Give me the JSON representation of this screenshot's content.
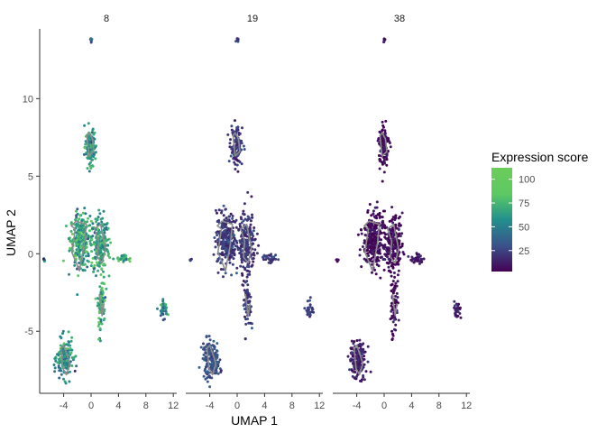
{
  "chart_data": {
    "type": "scatter",
    "facets": [
      "8",
      "19",
      "38"
    ],
    "xlabel": "UMAP 1",
    "ylabel": "UMAP 2",
    "xlim": [
      -7.5,
      12.5
    ],
    "ylim": [
      -9,
      14.5
    ],
    "x_ticks": [
      -4,
      0,
      4,
      8,
      12
    ],
    "x_tick_labels": [
      "-4",
      "0",
      "4",
      "8",
      "12"
    ],
    "y_ticks": [
      -5,
      0,
      5,
      10
    ],
    "y_tick_labels": [
      "-5",
      "0",
      "5",
      "10"
    ],
    "grid": false,
    "legend": {
      "title": "Expression score",
      "position": "right",
      "min": 3,
      "max": 112,
      "ticks": [
        25,
        50,
        75,
        100
      ],
      "tick_labels": [
        "25",
        "50",
        "75",
        "100"
      ],
      "palette": [
        "#440154",
        "#3b528b",
        "#21908c",
        "#5dc963",
        "#6ccc5a"
      ]
    },
    "clusters": [
      {
        "name": "top-dot",
        "cx": 0.0,
        "cy": 13.8,
        "rx": 0.15,
        "ry": 0.15,
        "n": 8,
        "score": [
          40,
          22,
          8
        ]
      },
      {
        "name": "upper-cluster",
        "cx": -0.1,
        "cy": 6.9,
        "rx": 0.75,
        "ry": 1.1,
        "n": 120,
        "score": [
          62,
          20,
          6
        ]
      },
      {
        "name": "left-main",
        "cx": -1.6,
        "cy": 0.9,
        "rx": 1.3,
        "ry": 1.6,
        "n": 260,
        "score": [
          68,
          22,
          6
        ]
      },
      {
        "name": "right-main",
        "cx": 1.3,
        "cy": 0.6,
        "rx": 1.2,
        "ry": 1.7,
        "n": 220,
        "score": [
          64,
          20,
          6
        ]
      },
      {
        "name": "lower-stem",
        "cx": 1.5,
        "cy": -3.2,
        "rx": 0.5,
        "ry": 1.4,
        "n": 70,
        "score": [
          70,
          22,
          8
        ]
      },
      {
        "name": "right-streak",
        "cx": 4.8,
        "cy": -0.3,
        "rx": 1.0,
        "ry": 0.25,
        "n": 30,
        "score": [
          72,
          24,
          10
        ]
      },
      {
        "name": "left-dot",
        "cx": -6.8,
        "cy": -0.4,
        "rx": 0.15,
        "ry": 0.12,
        "n": 5,
        "score": [
          50,
          20,
          6
        ]
      },
      {
        "name": "far-right",
        "cx": 10.6,
        "cy": -3.6,
        "rx": 0.45,
        "ry": 0.55,
        "n": 30,
        "score": [
          58,
          26,
          14
        ]
      },
      {
        "name": "bottom-left",
        "cx": -3.8,
        "cy": -6.8,
        "rx": 1.1,
        "ry": 1.1,
        "n": 170,
        "score": [
          56,
          30,
          12
        ]
      },
      {
        "name": "outlier-1",
        "cx": 1.2,
        "cy": -5.5,
        "rx": 0.05,
        "ry": 0.05,
        "n": 2,
        "score": [
          60,
          20,
          6
        ]
      }
    ],
    "contours": [
      {
        "name": "upper",
        "points": [
          [
            -0.6,
            7.6
          ],
          [
            -0.3,
            6.3
          ],
          [
            0.4,
            6.6
          ],
          [
            0.2,
            7.4
          ],
          [
            -0.3,
            7.8
          ]
        ]
      },
      {
        "name": "left-main",
        "points": [
          [
            -2.9,
            1.8
          ],
          [
            -2.3,
            1.6
          ],
          [
            -2.8,
            0.1
          ],
          [
            -1.7,
            -1.1
          ],
          [
            -1.0,
            0.6
          ],
          [
            -0.7,
            1.9
          ],
          [
            -1.5,
            2.0
          ],
          [
            -2.2,
            2.1
          ]
        ]
      },
      {
        "name": "right-main",
        "points": [
          [
            0.5,
            1.6
          ],
          [
            1.4,
            1.9
          ],
          [
            2.1,
            0.3
          ],
          [
            1.6,
            -0.6
          ],
          [
            0.9,
            -0.2
          ],
          [
            1.1,
            0.8
          ]
        ]
      },
      {
        "name": "bottom-left",
        "points": [
          [
            -4.4,
            -6.1
          ],
          [
            -4.1,
            -7.4
          ],
          [
            -3.6,
            -7.8
          ],
          [
            -3.1,
            -7.1
          ],
          [
            -3.6,
            -6.4
          ],
          [
            -4.0,
            -5.9
          ]
        ]
      },
      {
        "name": "stem",
        "points": [
          [
            1.2,
            -2.6
          ],
          [
            1.6,
            -4.0
          ],
          [
            1.9,
            -3.2
          ]
        ]
      }
    ]
  }
}
